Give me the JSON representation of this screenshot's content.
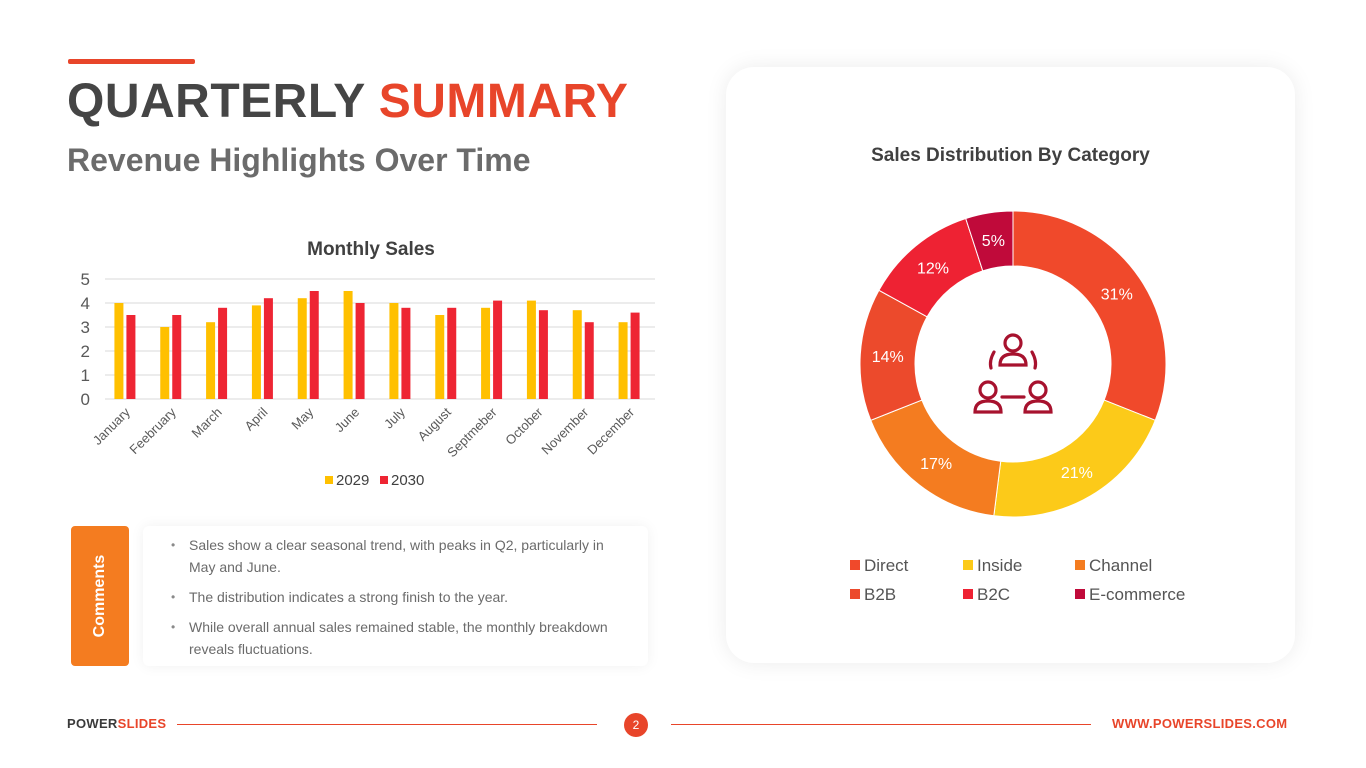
{
  "header": {
    "title_part1": "QUARTERLY ",
    "title_part2": "SUMMARY",
    "subtitle": "Revenue Highlights Over Time"
  },
  "chart_data": [
    {
      "type": "bar",
      "title": "Monthly Sales",
      "categories": [
        "January",
        "Feebruary",
        "March",
        "April",
        "May",
        "June",
        "July",
        "August",
        "Septmeber",
        "October",
        "November",
        "December"
      ],
      "series": [
        {
          "name": "2029",
          "color": "#ffc000",
          "values": [
            4.0,
            3.0,
            3.2,
            3.9,
            4.2,
            4.5,
            4.0,
            3.5,
            3.8,
            4.1,
            3.7,
            3.2
          ]
        },
        {
          "name": "2030",
          "color": "#ee2533",
          "values": [
            3.5,
            3.5,
            3.8,
            4.2,
            4.5,
            4.0,
            3.8,
            3.8,
            4.1,
            3.7,
            3.2,
            3.6
          ]
        }
      ],
      "yticks": [
        "0",
        "1",
        "2",
        "3",
        "4",
        "5"
      ],
      "ylim": [
        0,
        5
      ],
      "xlabel": "",
      "ylabel": "",
      "legend": "bottom",
      "grid": true
    },
    {
      "type": "pie",
      "title": "Sales Distribution By Category",
      "labels": [
        "Direct",
        "Inside",
        "Channel",
        "B2B",
        "B2C",
        "E-commerce"
      ],
      "values": [
        31,
        21,
        17,
        14,
        12,
        5
      ],
      "value_labels": [
        "31%",
        "21%",
        "17%",
        "14%",
        "12%",
        "5%"
      ],
      "colors": [
        "#f0492b",
        "#fcca19",
        "#f47c20",
        "#ec4a2c",
        "#ee2233",
        "#c00a3a"
      ],
      "center_icon": "team-icon",
      "legend": "bottom"
    }
  ],
  "comments": {
    "label": "Comments",
    "items": [
      "Sales show a clear seasonal trend, with peaks in Q2, particularly in May and June.",
      "The distribution indicates a strong finish to the year.",
      "While overall annual sales remained stable, the monthly breakdown reveals fluctuations."
    ]
  },
  "footer": {
    "brand_part1": "POWER",
    "brand_part2": "SLIDES",
    "page_number": "2",
    "url": "WWW.POWERSLIDES.COM"
  },
  "colors": {
    "accent": "#e8452a",
    "comments_tab": "#f47c20"
  }
}
